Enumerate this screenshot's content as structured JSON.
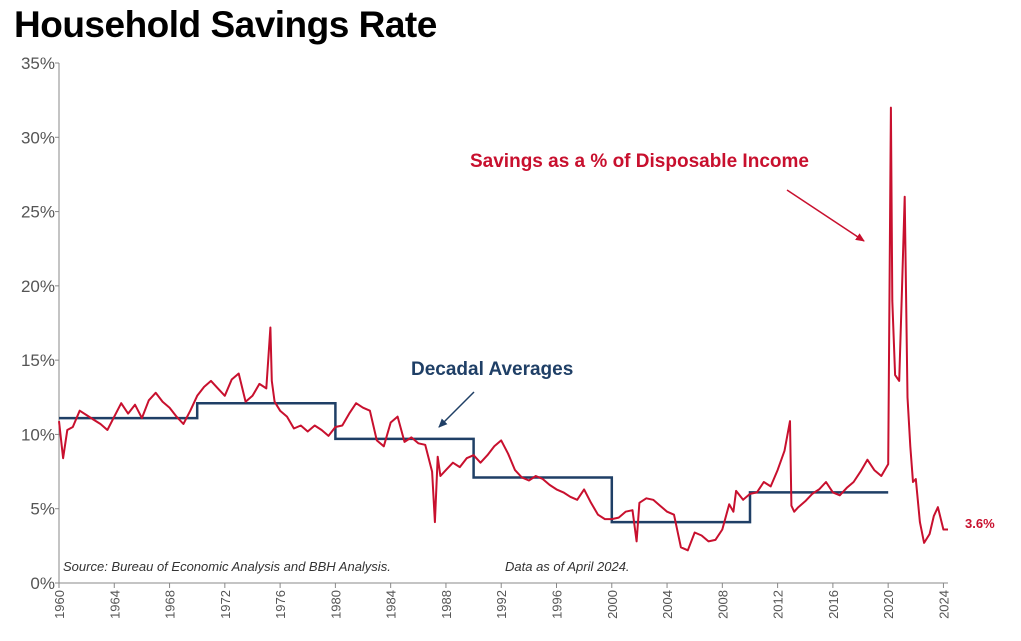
{
  "chart_data": {
    "type": "line",
    "title": "Household Savings Rate",
    "xlim": [
      1960,
      2024.33
    ],
    "ylim": [
      0,
      35
    ],
    "yticks": [
      0,
      5,
      10,
      15,
      20,
      25,
      30,
      35
    ],
    "ytick_labels": [
      "0%",
      "5%",
      "10%",
      "15%",
      "20%",
      "25%",
      "30%",
      "35%"
    ],
    "xticks": [
      1960,
      1964,
      1968,
      1972,
      1976,
      1980,
      1984,
      1988,
      1992,
      1996,
      2000,
      2004,
      2008,
      2012,
      2016,
      2020,
      2024
    ],
    "grid": false,
    "series": [
      {
        "name": "Savings as a % of Disposable Income",
        "color": "#c8102e",
        "x": [
          1960.0,
          1960.3,
          1960.6,
          1961.0,
          1961.5,
          1962.0,
          1962.5,
          1963.0,
          1963.5,
          1964.0,
          1964.5,
          1965.0,
          1965.5,
          1966.0,
          1966.5,
          1967.0,
          1967.5,
          1968.0,
          1968.5,
          1969.0,
          1969.5,
          1970.0,
          1970.5,
          1971.0,
          1971.5,
          1972.0,
          1972.5,
          1973.0,
          1973.5,
          1974.0,
          1974.5,
          1975.0,
          1975.3,
          1975.4,
          1975.6,
          1976.0,
          1976.5,
          1977.0,
          1977.5,
          1978.0,
          1978.5,
          1979.0,
          1979.5,
          1980.0,
          1980.5,
          1981.0,
          1981.5,
          1982.0,
          1982.5,
          1983.0,
          1983.5,
          1984.0,
          1984.5,
          1985.0,
          1985.5,
          1986.0,
          1986.5,
          1987.0,
          1987.2,
          1987.4,
          1987.6,
          1988.0,
          1988.5,
          1989.0,
          1989.5,
          1990.0,
          1990.5,
          1991.0,
          1991.5,
          1992.0,
          1992.5,
          1993.0,
          1993.5,
          1994.0,
          1994.5,
          1995.0,
          1995.5,
          1996.0,
          1996.5,
          1997.0,
          1997.5,
          1998.0,
          1998.5,
          1999.0,
          1999.5,
          2000.0,
          2000.5,
          2001.0,
          2001.5,
          2001.8,
          2002.0,
          2002.5,
          2003.0,
          2003.5,
          2004.0,
          2004.5,
          2005.0,
          2005.5,
          2006.0,
          2006.5,
          2007.0,
          2007.5,
          2008.0,
          2008.5,
          2008.8,
          2009.0,
          2009.5,
          2010.0,
          2010.5,
          2011.0,
          2011.5,
          2012.0,
          2012.5,
          2012.9,
          2013.0,
          2013.2,
          2013.5,
          2014.0,
          2014.5,
          2015.0,
          2015.5,
          2016.0,
          2016.5,
          2017.0,
          2017.5,
          2018.0,
          2018.5,
          2019.0,
          2019.5,
          2020.0,
          2020.2,
          2020.3,
          2020.5,
          2020.8,
          2021.0,
          2021.2,
          2021.4,
          2021.6,
          2021.8,
          2022.0,
          2022.3,
          2022.6,
          2023.0,
          2023.3,
          2023.6,
          2024.0,
          2024.33
        ],
        "y": [
          10.9,
          8.4,
          10.3,
          10.5,
          11.6,
          11.3,
          11.0,
          10.7,
          10.3,
          11.2,
          12.1,
          11.4,
          12.0,
          11.1,
          12.3,
          12.8,
          12.2,
          11.8,
          11.2,
          10.7,
          11.6,
          12.6,
          13.2,
          13.6,
          13.1,
          12.6,
          13.7,
          14.1,
          12.2,
          12.6,
          13.4,
          13.1,
          17.2,
          13.6,
          12.2,
          11.6,
          11.2,
          10.4,
          10.6,
          10.2,
          10.6,
          10.3,
          9.9,
          10.5,
          10.6,
          11.4,
          12.1,
          11.8,
          11.6,
          9.6,
          9.2,
          10.8,
          11.2,
          9.5,
          9.8,
          9.4,
          9.3,
          7.5,
          4.1,
          8.5,
          7.2,
          7.6,
          8.1,
          7.8,
          8.4,
          8.6,
          8.1,
          8.6,
          9.2,
          9.6,
          8.7,
          7.6,
          7.1,
          6.9,
          7.2,
          7.0,
          6.6,
          6.3,
          6.1,
          5.8,
          5.6,
          6.3,
          5.4,
          4.6,
          4.3,
          4.3,
          4.4,
          4.8,
          4.9,
          2.8,
          5.4,
          5.7,
          5.6,
          5.2,
          4.8,
          4.6,
          2.4,
          2.2,
          3.4,
          3.2,
          2.8,
          2.9,
          3.6,
          5.3,
          4.8,
          6.2,
          5.6,
          6.0,
          6.1,
          6.8,
          6.5,
          7.6,
          8.9,
          10.9,
          5.2,
          4.8,
          5.1,
          5.5,
          6.0,
          6.3,
          6.8,
          6.1,
          5.9,
          6.4,
          6.8,
          7.5,
          8.3,
          7.6,
          7.2,
          8.0,
          32.0,
          19.0,
          14.0,
          13.6,
          19.8,
          26.0,
          12.5,
          9.2,
          6.8,
          7.0,
          4.1,
          2.7,
          3.3,
          4.5,
          5.1,
          3.6,
          3.6
        ]
      },
      {
        "name": "Decadal Averages",
        "color": "#1f3f66",
        "x": [
          1960,
          1970,
          1970,
          1980,
          1980,
          1990,
          1990,
          2000,
          2000,
          2010,
          2010,
          2020
        ],
        "y": [
          11.1,
          11.1,
          12.1,
          12.1,
          9.7,
          9.7,
          7.1,
          7.1,
          4.1,
          4.1,
          6.1,
          6.1
        ]
      }
    ],
    "annotations": {
      "savings_label": "Savings as a % of Disposable Income",
      "averages_label": "Decadal Averages",
      "end_value_label": "3.6%"
    },
    "source_note": "Source: Bureau of Economic Analysis and BBH Analysis.",
    "data_note": "Data as of April 2024."
  }
}
